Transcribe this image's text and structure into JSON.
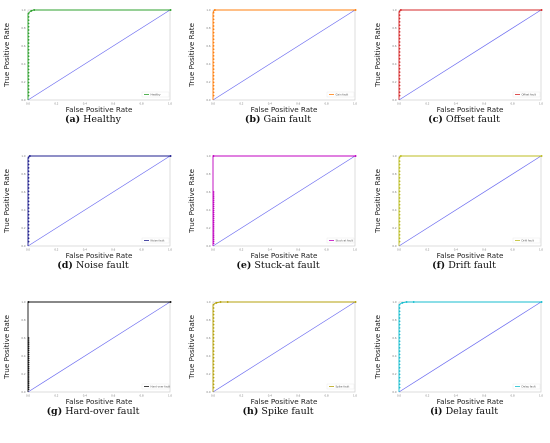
{
  "chart_data": [
    {
      "type": "line",
      "letter": "(a)",
      "caption": "Healthy",
      "xlabel": "False Positive Rate",
      "ylabel": "True Positive Rate",
      "xlim": [
        0,
        1
      ],
      "ylim": [
        0,
        1
      ],
      "color": "#2ca02c",
      "legend": "Healthy",
      "ticks": [
        "0.0",
        "0.2",
        "0.4",
        "0.6",
        "0.8",
        "1.0"
      ],
      "series": [
        {
          "name": "Healthy",
          "x": [
            0,
            0.0,
            0.02,
            0.04,
            1
          ],
          "y": [
            0,
            0.96,
            0.99,
            1.0,
            1.0
          ]
        },
        {
          "name": "chance",
          "x": [
            0,
            1
          ],
          "y": [
            0,
            1
          ]
        }
      ]
    },
    {
      "type": "line",
      "letter": "(b)",
      "caption": "Gain fault",
      "xlabel": "False Positive Rate",
      "ylabel": "True Positive Rate",
      "xlim": [
        0,
        1
      ],
      "ylim": [
        0,
        1
      ],
      "color": "#ff7f0e",
      "legend": "Gain fault",
      "ticks": [
        "0.0",
        "0.2",
        "0.4",
        "0.6",
        "0.8",
        "1.0"
      ],
      "series": [
        {
          "name": "Gain fault",
          "x": [
            0,
            0.0,
            0.01,
            1
          ],
          "y": [
            0,
            0.97,
            1.0,
            1.0
          ]
        },
        {
          "name": "chance",
          "x": [
            0,
            1
          ],
          "y": [
            0,
            1
          ]
        }
      ]
    },
    {
      "type": "line",
      "letter": "(c)",
      "caption": "Offset fault",
      "xlabel": "False Positive Rate",
      "ylabel": "True Positive Rate",
      "xlim": [
        0,
        1
      ],
      "ylim": [
        0,
        1
      ],
      "color": "#d62728",
      "legend": "Offset fault",
      "ticks": [
        "0.0",
        "0.2",
        "0.4",
        "0.6",
        "0.8",
        "1.0"
      ],
      "series": [
        {
          "name": "Offset fault",
          "x": [
            0,
            0.0,
            0.01,
            1
          ],
          "y": [
            0,
            0.98,
            1.0,
            1.0
          ]
        },
        {
          "name": "chance",
          "x": [
            0,
            1
          ],
          "y": [
            0,
            1
          ]
        }
      ]
    },
    {
      "type": "line",
      "letter": "(d)",
      "caption": "Noise fault",
      "xlabel": "False Positive Rate",
      "ylabel": "True Positive Rate",
      "xlim": [
        0,
        1
      ],
      "ylim": [
        0,
        1
      ],
      "color": "#1f1f8f",
      "legend": "Noise fault",
      "ticks": [
        "0.0",
        "0.2",
        "0.4",
        "0.6",
        "0.8",
        "1.0"
      ],
      "series": [
        {
          "name": "Noise fault",
          "x": [
            0,
            0.0,
            0.01,
            1
          ],
          "y": [
            0,
            0.98,
            1.0,
            1.0
          ]
        },
        {
          "name": "chance",
          "x": [
            0,
            1
          ],
          "y": [
            0,
            1
          ]
        }
      ]
    },
    {
      "type": "line",
      "letter": "(e)",
      "caption": "Stuck-at fault",
      "xlabel": "False Positive Rate",
      "ylabel": "True Positive Rate",
      "xlim": [
        0,
        1
      ],
      "ylim": [
        0,
        1
      ],
      "color": "#c000c0",
      "legend": "Stuck-at fault",
      "ticks": [
        "0.0",
        "0.2",
        "0.4",
        "0.6",
        "0.8",
        "1.0"
      ],
      "series": [
        {
          "name": "Stuck-at fault",
          "x": [
            0,
            0.0,
            0.0,
            1
          ],
          "y": [
            0,
            0.6,
            1.0,
            1.0
          ]
        },
        {
          "name": "chance",
          "x": [
            0,
            1
          ],
          "y": [
            0,
            1
          ]
        }
      ]
    },
    {
      "type": "line",
      "letter": "(f)",
      "caption": "Drift fault",
      "xlabel": "False Positive Rate",
      "ylabel": "True Positive Rate",
      "xlim": [
        0,
        1
      ],
      "ylim": [
        0,
        1
      ],
      "color": "#bcbd22",
      "legend": "Drift fault",
      "ticks": [
        "0.0",
        "0.2",
        "0.4",
        "0.6",
        "0.8",
        "1.0"
      ],
      "series": [
        {
          "name": "Drift fault",
          "x": [
            0,
            0.0,
            0.01,
            1
          ],
          "y": [
            0,
            0.98,
            1.0,
            1.0
          ]
        },
        {
          "name": "chance",
          "x": [
            0,
            1
          ],
          "y": [
            0,
            1
          ]
        }
      ]
    },
    {
      "type": "line",
      "letter": "(g)",
      "caption": "Hard-over fault",
      "xlabel": "False Positive Rate",
      "ylabel": "True Positive Rate",
      "xlim": [
        0,
        1
      ],
      "ylim": [
        0,
        1
      ],
      "color": "#111111",
      "legend": "Hard-over fault",
      "ticks": [
        "0.0",
        "0.2",
        "0.4",
        "0.6",
        "0.8",
        "1.0"
      ],
      "series": [
        {
          "name": "Hard-over fault",
          "x": [
            0,
            0.0,
            0.0,
            1
          ],
          "y": [
            0,
            0.6,
            1.0,
            1.0
          ]
        },
        {
          "name": "chance",
          "x": [
            0,
            1
          ],
          "y": [
            0,
            1
          ]
        }
      ]
    },
    {
      "type": "line",
      "letter": "(h)",
      "caption": "Spike fault",
      "xlabel": "False Positive Rate",
      "ylabel": "True Positive Rate",
      "xlim": [
        0,
        1
      ],
      "ylim": [
        0,
        1
      ],
      "color": "#b5a20c",
      "legend": "Spike fault",
      "ticks": [
        "0.0",
        "0.2",
        "0.4",
        "0.6",
        "0.8",
        "1.0"
      ],
      "series": [
        {
          "name": "Spike fault",
          "x": [
            0,
            0.0,
            0.02,
            0.05,
            0.1,
            1
          ],
          "y": [
            0,
            0.97,
            0.99,
            1.0,
            1.0,
            1.0
          ]
        },
        {
          "name": "chance",
          "x": [
            0,
            1
          ],
          "y": [
            0,
            1
          ]
        }
      ]
    },
    {
      "type": "line",
      "letter": "(i)",
      "caption": "Delay fault",
      "xlabel": "False Positive Rate",
      "ylabel": "True Positive Rate",
      "xlim": [
        0,
        1
      ],
      "ylim": [
        0,
        1
      ],
      "color": "#17becf",
      "legend": "Delay fault",
      "ticks": [
        "0.0",
        "0.2",
        "0.4",
        "0.6",
        "0.8",
        "1.0"
      ],
      "series": [
        {
          "name": "Delay fault",
          "x": [
            0,
            0.0,
            0.02,
            0.05,
            0.1,
            1
          ],
          "y": [
            0,
            0.97,
            0.99,
            1.0,
            1.0,
            1.0
          ]
        },
        {
          "name": "chance",
          "x": [
            0,
            1
          ],
          "y": [
            0,
            1
          ]
        }
      ]
    }
  ]
}
